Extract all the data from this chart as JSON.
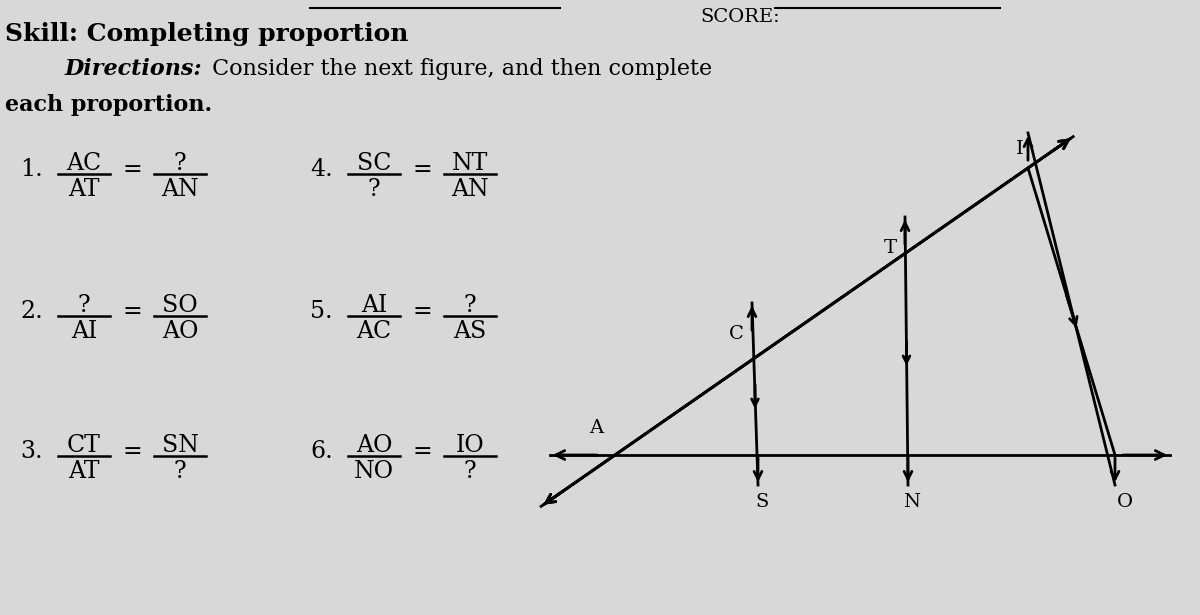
{
  "bg_color": "#d8d8d8",
  "proportions": [
    {
      "num": "1.",
      "frac1_top": "AC",
      "frac1_bot": "AT",
      "frac2_top": "?",
      "frac2_bot": "AN"
    },
    {
      "num": "2.",
      "frac1_top": "?",
      "frac1_bot": "AI",
      "frac2_top": "SO",
      "frac2_bot": "AO"
    },
    {
      "num": "3.",
      "frac1_top": "CT",
      "frac1_bot": "AT",
      "frac2_top": "SN",
      "frac2_bot": "?"
    },
    {
      "num": "4.",
      "frac1_top": "SC",
      "frac1_bot": "?",
      "frac2_top": "NT",
      "frac2_bot": "AN"
    },
    {
      "num": "5.",
      "frac1_top": "AI",
      "frac1_bot": "AC",
      "frac2_top": "?",
      "frac2_bot": "AS"
    },
    {
      "num": "6.",
      "frac1_top": "AO",
      "frac1_bot": "NO",
      "frac2_top": "IO",
      "frac2_bot": "?"
    }
  ]
}
